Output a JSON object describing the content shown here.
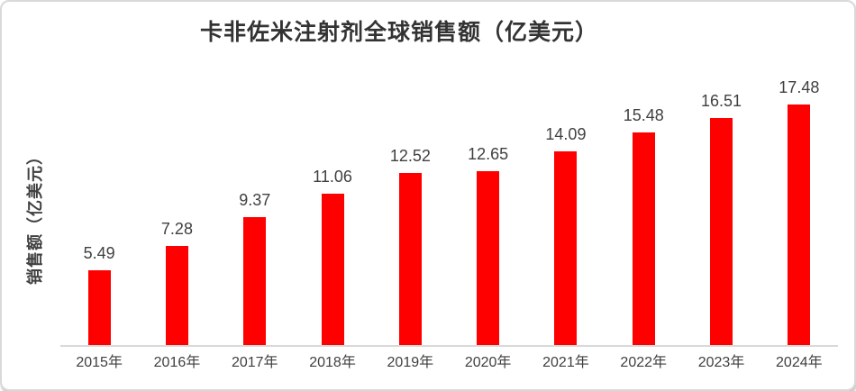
{
  "colors": {
    "bar": "#fe0000",
    "label_text": "#404040",
    "title_text": "#333333",
    "axis_line": "#d9d9d9",
    "frame_border": "#d9d9d9",
    "background": "#ffffff"
  },
  "chart_data": {
    "type": "bar",
    "title": "卡非佐米注射剂全球销售额（亿美元）",
    "ylabel": "销售额（亿美元）",
    "xlabel": "",
    "categories": [
      "2015年",
      "2016年",
      "2017年",
      "2018年",
      "2019年",
      "2020年",
      "2021年",
      "2022年",
      "2023年",
      "2024年"
    ],
    "values": [
      5.49,
      7.28,
      9.37,
      11.06,
      12.52,
      12.65,
      14.09,
      15.48,
      16.51,
      17.48
    ],
    "ylim": [
      0,
      20
    ],
    "grid": false,
    "legend": "none",
    "data_labels_shown": true,
    "value_format_decimals": 2
  }
}
